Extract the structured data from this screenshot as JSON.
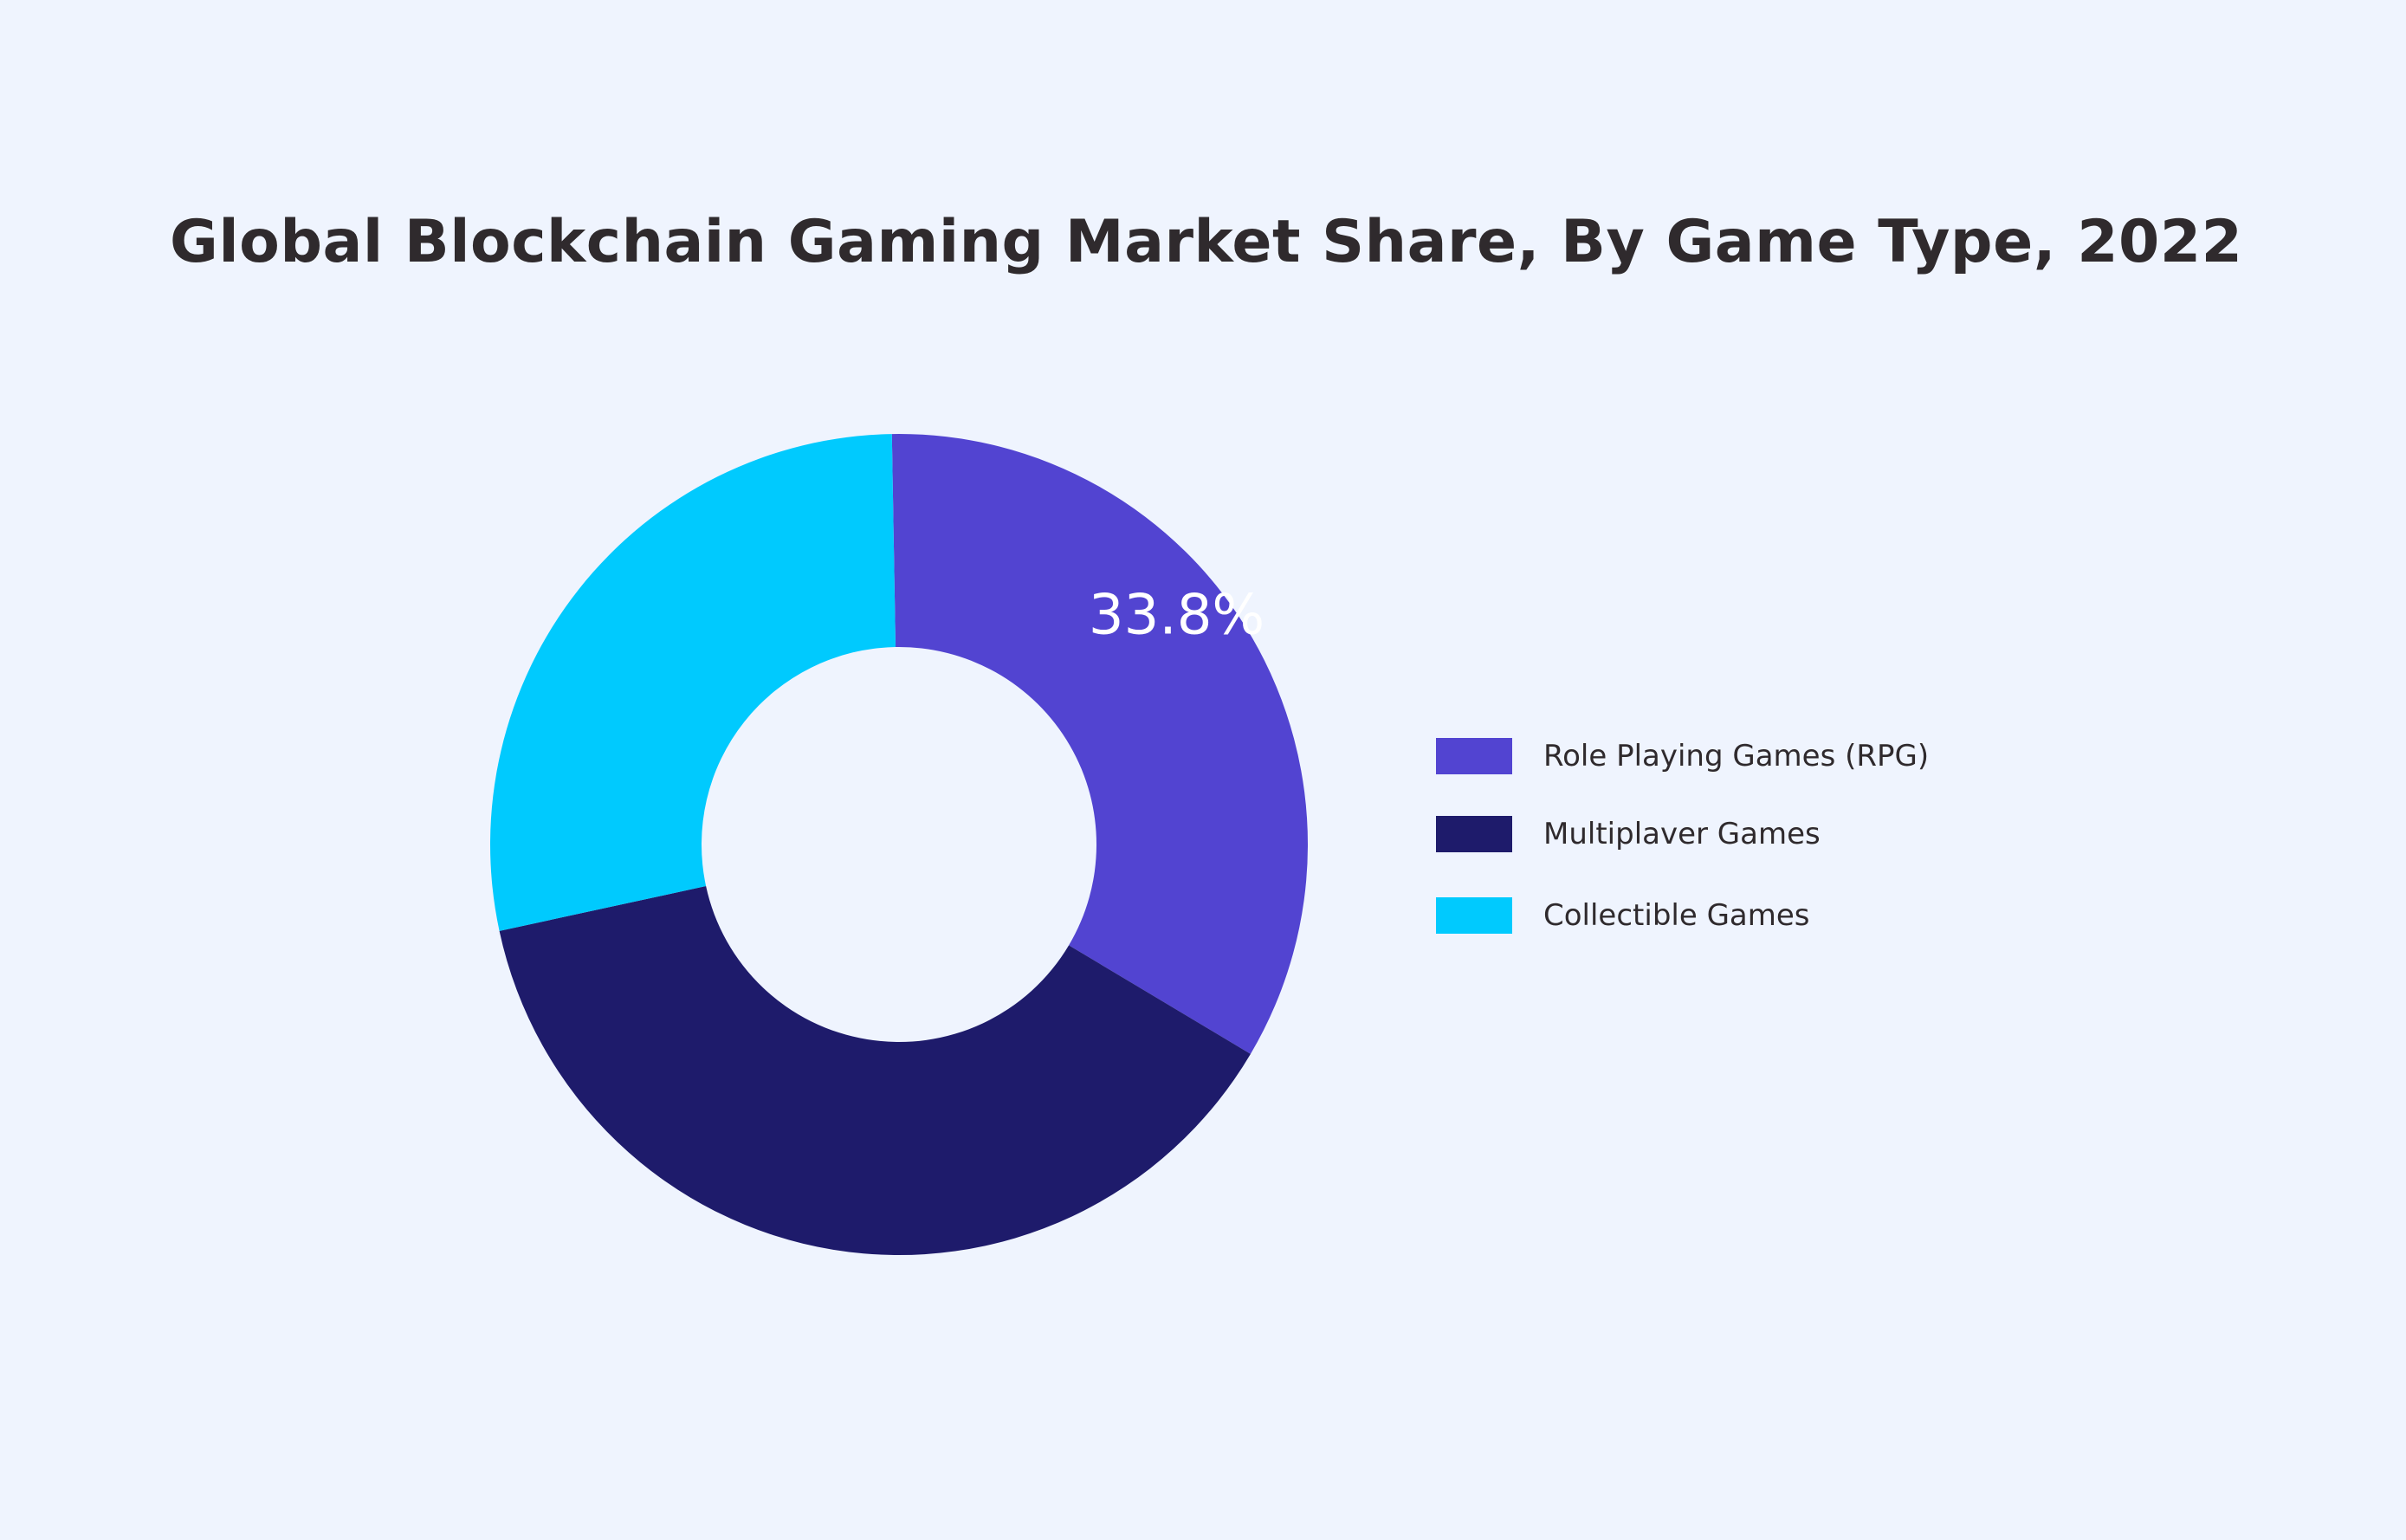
{
  "page": {
    "background": "#eff4fe"
  },
  "chart_data": {
    "type": "pie",
    "style": "donut",
    "title": "Global Blockchain Gaming Market Share, By Game Type, 2022",
    "categories": [
      "Role Playing Games (RPG)",
      "Multiplaver Games",
      "Collectible Games"
    ],
    "values": [
      33.8,
      38.1,
      28.1
    ],
    "colors": [
      "#5244d1",
      "#1e1b6b",
      "#00cafe"
    ],
    "data_labels": [
      "33.8%",
      "",
      ""
    ],
    "legend": {
      "placement": "right",
      "entries": [
        {
          "label": "Role Playing Games (RPG)",
          "color": "#5244d1"
        },
        {
          "label": "Multiplaver Games",
          "color": "#1e1b6b"
        },
        {
          "label": "Collectible Games",
          "color": "#00cafe"
        }
      ]
    }
  }
}
